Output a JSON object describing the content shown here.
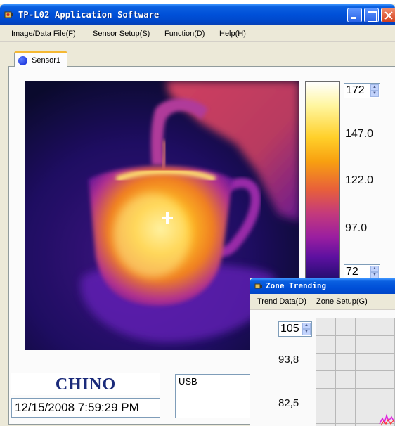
{
  "window": {
    "title": "TP-L02 Application Software"
  },
  "menubar": {
    "items": [
      "Image/Data File(F)",
      "Sensor Setup(S)",
      "Function(D)",
      "Help(H)"
    ]
  },
  "tab": {
    "label": "Sensor1"
  },
  "scale": {
    "max_value": "172",
    "min_value": "72",
    "ticks": [
      "147.0",
      "122.0",
      "97.0"
    ],
    "colors": [
      "#ffffff",
      "#ffd02a",
      "#e8603a",
      "#9a1ea0",
      "#1e0d6b"
    ]
  },
  "footer": {
    "logo": "CHINO",
    "datetime": "12/15/2008 7:59:29 PM",
    "connection": "USB"
  },
  "zone_window": {
    "title": "Zone Trending",
    "menu": [
      "Trend Data(D)",
      "Zone Setup(G)"
    ],
    "spin_value": "105",
    "labels": [
      "93,8",
      "82,5"
    ]
  },
  "icons": {
    "app": "thermal-camera-icon",
    "sensor": "sensor-dot-icon"
  }
}
